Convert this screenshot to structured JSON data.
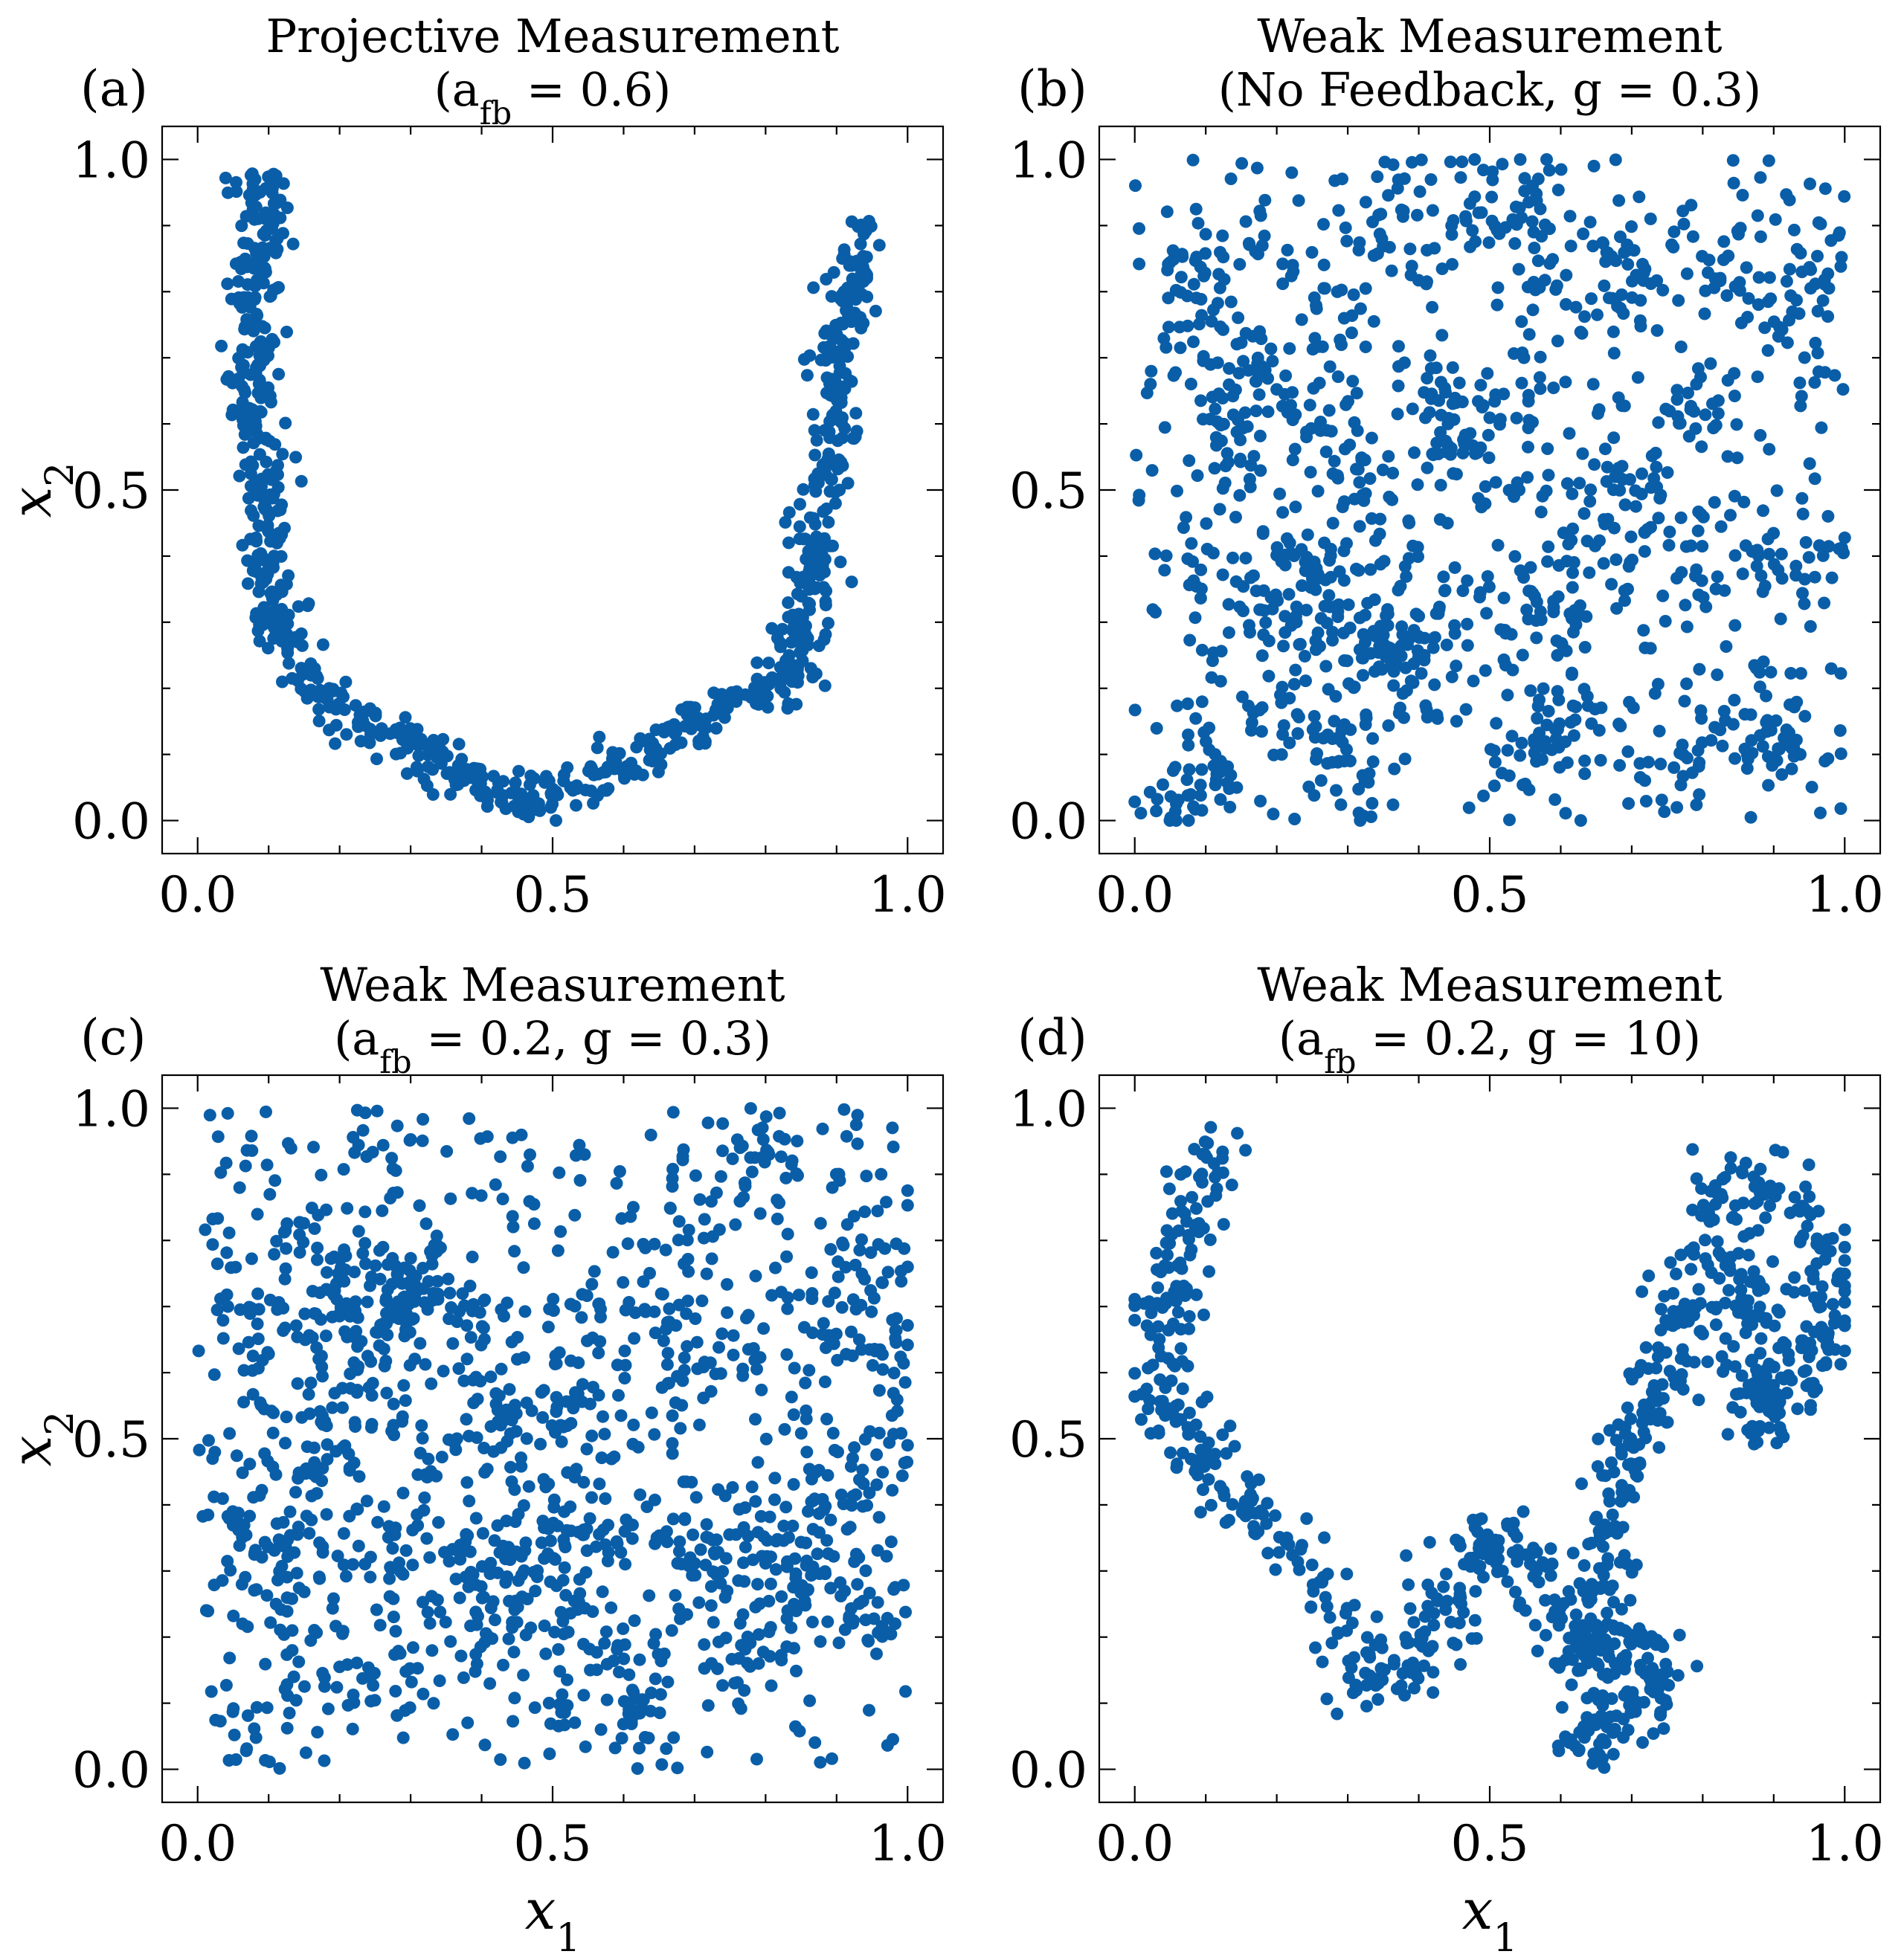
{
  "figure": {
    "marker_color": "#0a5ea8",
    "background": "#ffffff"
  },
  "chart_data": [
    {
      "type": "scatter",
      "panel_label": "(a)",
      "title_line1": "Projective Measurement",
      "title_line2": "(a_fb = 0.6)",
      "xlabel": "",
      "ylabel": "x_2",
      "xlim": [
        -0.05,
        1.05
      ],
      "ylim": [
        -0.05,
        1.05
      ],
      "xticks": [
        "0.0",
        "0.5",
        "1.0"
      ],
      "yticks": [
        "0.0",
        "0.5",
        "1.0"
      ],
      "shape": "u-curve",
      "point_count": 900,
      "path": [
        [
          0.09,
          0.97
        ],
        [
          0.1,
          0.9
        ],
        [
          0.08,
          0.82
        ],
        [
          0.09,
          0.72
        ],
        [
          0.07,
          0.62
        ],
        [
          0.1,
          0.55
        ],
        [
          0.1,
          0.47
        ],
        [
          0.1,
          0.38
        ],
        [
          0.11,
          0.3
        ],
        [
          0.17,
          0.2
        ],
        [
          0.24,
          0.14
        ],
        [
          0.3,
          0.12
        ],
        [
          0.36,
          0.07
        ],
        [
          0.42,
          0.06
        ],
        [
          0.48,
          0.03
        ],
        [
          0.55,
          0.06
        ],
        [
          0.62,
          0.09
        ],
        [
          0.7,
          0.14
        ],
        [
          0.78,
          0.2
        ],
        [
          0.83,
          0.2
        ],
        [
          0.87,
          0.35
        ],
        [
          0.88,
          0.5
        ],
        [
          0.9,
          0.6
        ],
        [
          0.9,
          0.72
        ],
        [
          0.92,
          0.8
        ],
        [
          0.94,
          0.9
        ]
      ]
    },
    {
      "type": "scatter",
      "panel_label": "(b)",
      "title_line1": "Weak Measurement",
      "title_line2": "(No Feedback, g = 0.3)",
      "xlabel": "",
      "ylabel": "",
      "xlim": [
        -0.05,
        1.05
      ],
      "ylim": [
        -0.05,
        1.05
      ],
      "xticks": [
        "0.0",
        "0.5",
        "1.0"
      ],
      "yticks": [
        "0.0",
        "0.5",
        "1.0"
      ],
      "shape": "scatter-filled",
      "point_count": 1400,
      "path": [
        [
          0.0,
          0.0
        ],
        [
          1.0,
          1.0
        ]
      ]
    },
    {
      "type": "scatter",
      "panel_label": "(c)",
      "title_line1": "Weak Measurement",
      "title_line2": "(a_fb = 0.2, g = 0.3)",
      "xlabel": "x_1",
      "ylabel": "x_2",
      "xlim": [
        -0.05,
        1.05
      ],
      "ylim": [
        -0.05,
        1.05
      ],
      "xticks": [
        "0.0",
        "0.5",
        "1.0"
      ],
      "yticks": [
        "0.0",
        "0.5",
        "1.0"
      ],
      "shape": "scatter-filled",
      "point_count": 1500,
      "path": [
        [
          0.0,
          0.0
        ],
        [
          1.0,
          1.0
        ]
      ]
    },
    {
      "type": "scatter",
      "panel_label": "(d)",
      "title_line1": "Weak Measurement",
      "title_line2": "(a_fb = 0.2, g = 10)",
      "xlabel": "x_1",
      "ylabel": "",
      "xlim": [
        -0.05,
        1.05
      ],
      "ylim": [
        -0.05,
        1.05
      ],
      "xticks": [
        "0.0",
        "0.5",
        "1.0"
      ],
      "yticks": [
        "0.0",
        "0.5",
        "1.0"
      ],
      "shape": "wing",
      "point_count": 1000,
      "path": [
        [
          0.12,
          0.97
        ],
        [
          0.1,
          0.9
        ],
        [
          0.06,
          0.8
        ],
        [
          0.04,
          0.68
        ],
        [
          0.03,
          0.58
        ],
        [
          0.08,
          0.5
        ],
        [
          0.13,
          0.4
        ],
        [
          0.2,
          0.34
        ],
        [
          0.26,
          0.28
        ],
        [
          0.3,
          0.2
        ],
        [
          0.33,
          0.12
        ],
        [
          0.38,
          0.16
        ],
        [
          0.43,
          0.22
        ],
        [
          0.46,
          0.3
        ],
        [
          0.5,
          0.36
        ],
        [
          0.55,
          0.32
        ],
        [
          0.6,
          0.22
        ],
        [
          0.64,
          0.16
        ],
        [
          0.7,
          0.2
        ],
        [
          0.74,
          0.12
        ],
        [
          0.68,
          0.06
        ],
        [
          0.63,
          0.02
        ],
        [
          0.66,
          0.35
        ],
        [
          0.7,
          0.5
        ],
        [
          0.76,
          0.62
        ],
        [
          0.78,
          0.75
        ],
        [
          0.82,
          0.86
        ],
        [
          0.9,
          0.88
        ],
        [
          0.96,
          0.8
        ],
        [
          0.98,
          0.68
        ],
        [
          0.94,
          0.58
        ],
        [
          0.88,
          0.52
        ],
        [
          0.87,
          0.66
        ],
        [
          0.85,
          0.78
        ]
      ]
    }
  ]
}
